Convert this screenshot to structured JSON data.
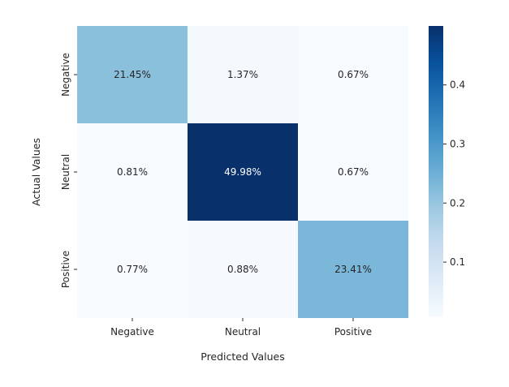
{
  "chart_data": {
    "type": "heatmap",
    "x_categories": [
      "Negative",
      "Neutral",
      "Positive"
    ],
    "y_categories": [
      "Negative",
      "Neutral",
      "Positive"
    ],
    "values": [
      [
        0.2145,
        0.0137,
        0.0067
      ],
      [
        0.0081,
        0.4998,
        0.0067
      ],
      [
        0.0077,
        0.0088,
        0.2341
      ]
    ],
    "cell_labels": [
      [
        "21.45%",
        "1.37%",
        "0.67%"
      ],
      [
        "0.81%",
        "49.98%",
        "0.67%"
      ],
      [
        "0.77%",
        "0.88%",
        "23.41%"
      ]
    ],
    "xlabel": "Predicted Values",
    "ylabel": "Actual Values",
    "colormap": "Blues",
    "colorbar": {
      "range": [
        0.0067,
        0.4998
      ],
      "ticks": [
        0.1,
        0.2,
        0.3,
        0.4
      ],
      "tick_labels": [
        "0.1",
        "0.2",
        "0.3",
        "0.4"
      ]
    }
  }
}
